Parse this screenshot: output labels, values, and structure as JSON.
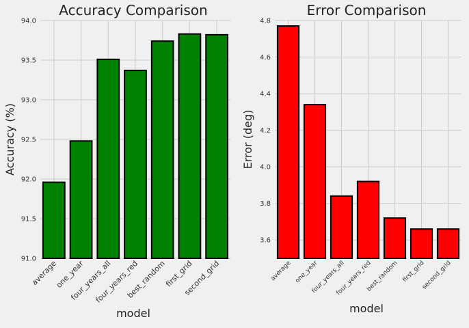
{
  "chart_data": [
    {
      "type": "bar",
      "title": "Accuracy Comparison",
      "xlabel": "model",
      "ylabel": "Accuracy (%)",
      "categories": [
        "average",
        "one_year",
        "four_years_all",
        "four_years_red",
        "best_random",
        "first_grid",
        "second_grid"
      ],
      "values": [
        91.96,
        92.48,
        93.51,
        93.37,
        93.74,
        93.83,
        93.82
      ],
      "ylim": [
        91.0,
        94.0
      ],
      "yticks": [
        "91.0",
        "91.5",
        "92.0",
        "92.5",
        "93.0",
        "93.5",
        "94.0"
      ],
      "tick_label_rotation": 45,
      "grid": true,
      "bar_color": "#008000",
      "edge_color": "#000000"
    },
    {
      "type": "bar",
      "title": "Error Comparison",
      "xlabel": "model",
      "ylabel": "Error (deg)",
      "categories": [
        "average",
        "one_year",
        "four_years_all",
        "four_years_red",
        "best_random",
        "first_grid",
        "second_grid"
      ],
      "values": [
        4.77,
        4.34,
        3.84,
        3.92,
        3.72,
        3.66,
        3.66
      ],
      "ylim": [
        3.5,
        4.8
      ],
      "yticks": [
        "3.6",
        "3.8",
        "4.0",
        "4.2",
        "4.4",
        "4.6",
        "4.8"
      ],
      "tick_label_rotation": 45,
      "grid": true,
      "bar_color": "#ff0000",
      "edge_color": "#000000"
    }
  ]
}
